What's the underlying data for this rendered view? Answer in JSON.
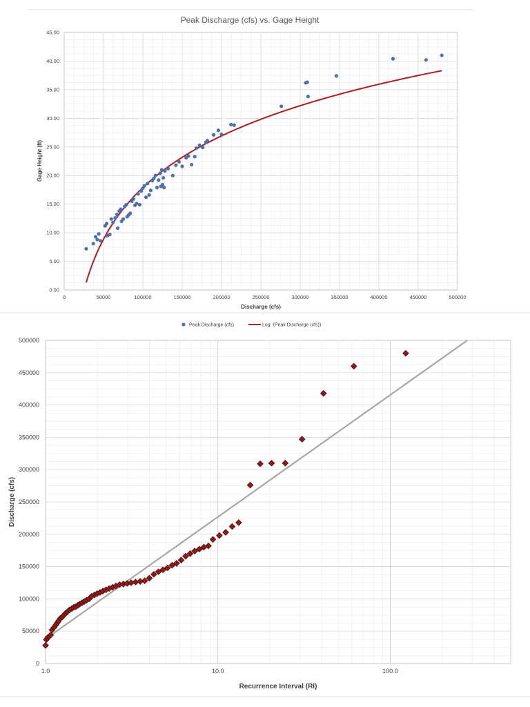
{
  "chart_data": [
    {
      "type": "scatter",
      "title": "Peak Discharge (cfs) vs. Gage Height",
      "xlabel": "Discharge (cfs)",
      "ylabel": "Gage Height (ft)",
      "xlim": [
        0,
        500000
      ],
      "ylim": [
        0,
        45
      ],
      "x_ticks": [
        "0",
        "50000",
        "100000",
        "150000",
        "200000",
        "250000",
        "300000",
        "350000",
        "400000",
        "450000",
        "500000"
      ],
      "y_ticks": [
        "0.00",
        "5.00",
        "10.00",
        "15.00",
        "20.00",
        "25.00",
        "30.00",
        "35.00",
        "40.00",
        "45.00"
      ],
      "grid": true,
      "legend_position": "bottom",
      "series": [
        {
          "name": "Peak Discharge (cfs)",
          "color": "#4f6fad",
          "marker": "circle",
          "points": [
            [
              28000,
              7.2
            ],
            [
              37000,
              8.1
            ],
            [
              40000,
              9.3
            ],
            [
              42000,
              8.8
            ],
            [
              44000,
              9.8
            ],
            [
              46000,
              8.6
            ],
            [
              52000,
              11.2
            ],
            [
              54000,
              11.6
            ],
            [
              55000,
              9.5
            ],
            [
              58000,
              9.7
            ],
            [
              60000,
              12.4
            ],
            [
              62000,
              11.8
            ],
            [
              65000,
              12.6
            ],
            [
              67000,
              13.2
            ],
            [
              68000,
              10.8
            ],
            [
              70000,
              13.8
            ],
            [
              72000,
              14.1
            ],
            [
              73000,
              12.0
            ],
            [
              75000,
              12.4
            ],
            [
              77000,
              14.6
            ],
            [
              79000,
              14.9
            ],
            [
              80000,
              12.8
            ],
            [
              82000,
              13.1
            ],
            [
              84000,
              13.4
            ],
            [
              86000,
              15.5
            ],
            [
              88000,
              15.9
            ],
            [
              90000,
              14.8
            ],
            [
              92000,
              15.1
            ],
            [
              94000,
              16.8
            ],
            [
              96000,
              14.9
            ],
            [
              98000,
              17.3
            ],
            [
              100000,
              17.8
            ],
            [
              102000,
              18.2
            ],
            [
              104000,
              16.2
            ],
            [
              106000,
              18.6
            ],
            [
              108000,
              16.6
            ],
            [
              110000,
              17.4
            ],
            [
              112000,
              19.1
            ],
            [
              114000,
              19.5
            ],
            [
              116000,
              20.0
            ],
            [
              118000,
              17.9
            ],
            [
              120000,
              19.2
            ],
            [
              122000,
              20.4
            ],
            [
              123000,
              18.1
            ],
            [
              124000,
              21.0
            ],
            [
              125000,
              18.4
            ],
            [
              126000,
              19.6
            ],
            [
              127000,
              17.9
            ],
            [
              128000,
              20.8
            ],
            [
              132000,
              21.2
            ],
            [
              138000,
              20.0
            ],
            [
              142000,
              21.8
            ],
            [
              146000,
              22.4
            ],
            [
              150000,
              21.6
            ],
            [
              155000,
              23.1
            ],
            [
              158000,
              23.4
            ],
            [
              162000,
              21.9
            ],
            [
              166000,
              23.3
            ],
            [
              168000,
              24.8
            ],
            [
              172000,
              25.3
            ],
            [
              176000,
              24.9
            ],
            [
              180000,
              25.8
            ],
            [
              182000,
              26.1
            ],
            [
              190000,
              27.1
            ],
            [
              196000,
              27.9
            ],
            [
              200000,
              27.2
            ],
            [
              212000,
              28.9
            ],
            [
              216000,
              28.8
            ],
            [
              276000,
              32.1
            ],
            [
              307000,
              36.2
            ],
            [
              309000,
              36.3
            ],
            [
              310000,
              33.8
            ],
            [
              346000,
              37.4
            ],
            [
              418000,
              40.4
            ],
            [
              460000,
              40.2
            ],
            [
              480000,
              41.0
            ]
          ]
        },
        {
          "name": "Log. (Peak Discharge (cfs))",
          "color": "#b01c1c",
          "kind": "logarithmic trendline",
          "x_range": [
            28000,
            480000
          ],
          "fit": {
            "a": 13.02,
            "b": -132.0
          }
        }
      ]
    },
    {
      "type": "scatter",
      "title": "",
      "xlabel": "Recurrence Interval (RI)",
      "ylabel": "Discharge (cfs)",
      "x_scale": "log",
      "xlim": [
        1,
        500
      ],
      "ylim": [
        0,
        500000
      ],
      "x_ticks": [
        "1.0",
        "10.0",
        "100.0"
      ],
      "y_ticks": [
        "0",
        "50000",
        "100000",
        "150000",
        "200000",
        "250000",
        "300000",
        "350000",
        "400000",
        "450000",
        "500000"
      ],
      "grid": true,
      "series": [
        {
          "name": "",
          "color": "#8b1a1a",
          "marker": "diamond",
          "points": [
            [
              1.0,
              28000
            ],
            [
              1.01,
              37000
            ],
            [
              1.03,
              40000
            ],
            [
              1.05,
              42000
            ],
            [
              1.07,
              44000
            ],
            [
              1.09,
              52000
            ],
            [
              1.12,
              56000
            ],
            [
              1.15,
              60000
            ],
            [
              1.17,
              63000
            ],
            [
              1.19,
              66000
            ],
            [
              1.22,
              70000
            ],
            [
              1.25,
              72000
            ],
            [
              1.28,
              75000
            ],
            [
              1.31,
              78000
            ],
            [
              1.34,
              80000
            ],
            [
              1.38,
              83000
            ],
            [
              1.42,
              85000
            ],
            [
              1.46,
              87000
            ],
            [
              1.5,
              88000
            ],
            [
              1.54,
              90000
            ],
            [
              1.58,
              92000
            ],
            [
              1.63,
              94000
            ],
            [
              1.68,
              96000
            ],
            [
              1.73,
              98000
            ],
            [
              1.79,
              100000
            ],
            [
              1.85,
              104000
            ],
            [
              1.92,
              106000
            ],
            [
              1.99,
              108000
            ],
            [
              2.07,
              110000
            ],
            [
              2.15,
              112000
            ],
            [
              2.24,
              114000
            ],
            [
              2.34,
              116000
            ],
            [
              2.45,
              118000
            ],
            [
              2.56,
              120000
            ],
            [
              2.69,
              122000
            ],
            [
              2.83,
              123000
            ],
            [
              2.98,
              124000
            ],
            [
              3.14,
              125000
            ],
            [
              3.33,
              126000
            ],
            [
              3.54,
              127000
            ],
            [
              3.76,
              128000
            ],
            [
              4.0,
              132000
            ],
            [
              4.25,
              138000
            ],
            [
              4.52,
              142000
            ],
            [
              4.8,
              145000
            ],
            [
              5.1,
              148000
            ],
            [
              5.42,
              152000
            ],
            [
              5.76,
              155000
            ],
            [
              6.12,
              160000
            ],
            [
              6.5,
              166000
            ],
            [
              6.9,
              170000
            ],
            [
              7.34,
              174000
            ],
            [
              7.8,
              177000
            ],
            [
              8.29,
              180000
            ],
            [
              8.81,
              182000
            ],
            [
              9.36,
              192000
            ],
            [
              10.2,
              198000
            ],
            [
              11.1,
              203000
            ],
            [
              12.1,
              212000
            ],
            [
              13.2,
              218000
            ],
            [
              15.4,
              276000
            ],
            [
              17.6,
              309000
            ],
            [
              20.5,
              310000
            ],
            [
              24.6,
              310000
            ],
            [
              30.8,
              347000
            ],
            [
              41.0,
              418000
            ],
            [
              61.5,
              460000
            ],
            [
              123,
              480000
            ]
          ]
        },
        {
          "name": "",
          "color": "#a6a6a6",
          "kind": "trend line",
          "endpoints": [
            [
              1.0,
              38000
            ],
            [
              280,
              500000
            ]
          ]
        }
      ]
    }
  ]
}
